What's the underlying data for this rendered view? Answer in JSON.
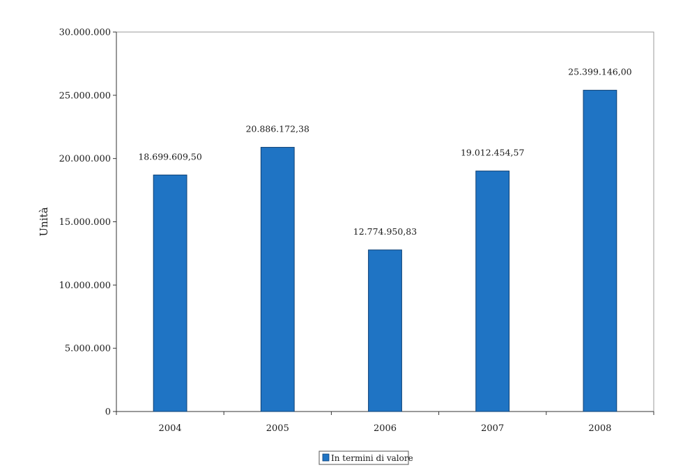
{
  "chart_data": {
    "type": "bar",
    "categories": [
      "2004",
      "2005",
      "2006",
      "2007",
      "2008"
    ],
    "series": [
      {
        "name": "In termini di valore",
        "values": [
          18699609.5,
          20886172.38,
          12774950.83,
          19012454.57,
          25399146.0
        ],
        "labels": [
          "18.699.609,50",
          "20.886.172,38",
          "12.774.950,83",
          "19.012.454,57",
          "25.399.146,00"
        ]
      }
    ],
    "xlabel": "",
    "ylabel": "Unità",
    "ylim": [
      0,
      30000000
    ],
    "yticks": [
      0,
      5000000,
      10000000,
      15000000,
      20000000,
      25000000,
      30000000
    ],
    "ytick_labels": [
      "0",
      "5.000.000",
      "10.000.000",
      "15.000.000",
      "20.000.000",
      "25.000.000",
      "30.000.000"
    ],
    "grid": false,
    "legend_position": "bottom",
    "colors": {
      "bar": "#1f74c4",
      "bar_edge": "#0d3f73",
      "axis": "#333333",
      "frame": "#999999"
    }
  }
}
